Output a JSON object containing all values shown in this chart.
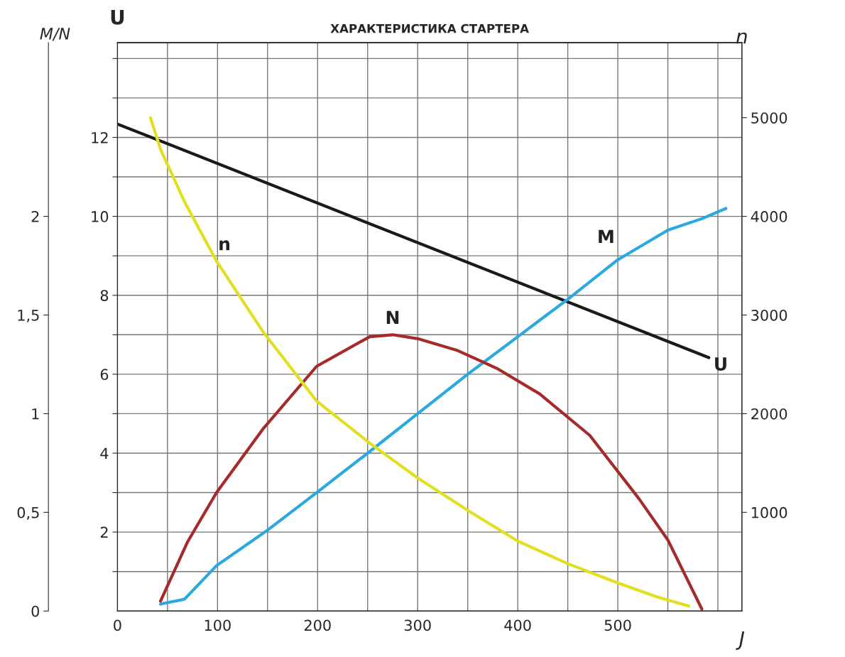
{
  "chart_data": {
    "type": "line",
    "title": "ХАРАКТЕРИСТИКА СТАРТЕРА",
    "xlabel": "J",
    "ylabel": "U",
    "y2label": "M/N",
    "y3label": "n",
    "xlim": [
      0,
      624
    ],
    "xticks": [
      0,
      {
        "value": 50,
        "label": null
      },
      100,
      {
        "value": 150,
        "label": null
      },
      200,
      {
        "value": 250,
        "label": null
      },
      300,
      {
        "value": 350,
        "label": null
      },
      400,
      {
        "value": 450,
        "label": null
      },
      500,
      {
        "value": 550,
        "label": null
      },
      {
        "value": 600,
        "label": null
      }
    ],
    "ylim": [
      0,
      14.4
    ],
    "yticks": [
      {
        "value": 1,
        "label": null
      },
      2,
      {
        "value": 3,
        "label": null
      },
      4,
      {
        "value": 5,
        "label": null
      },
      6,
      {
        "value": 7,
        "label": null
      },
      8,
      {
        "value": 9,
        "label": null
      },
      10,
      {
        "value": 11,
        "label": null
      },
      12,
      {
        "value": 13,
        "label": null
      },
      {
        "value": 14,
        "label": null
      }
    ],
    "y2lim": [
      0,
      2.88
    ],
    "y2ticks": [
      0,
      {
        "value": 0.5,
        "label": "0,5"
      },
      1,
      {
        "value": 1.5,
        "label": "1,5"
      },
      2
    ],
    "y3lim": [
      0,
      5760
    ],
    "y3ticks": [
      1000,
      2000,
      3000,
      4000,
      5000
    ],
    "grid": true,
    "marker": "none",
    "line_style": "solid",
    "series": [
      {
        "name": "U",
        "color": "#1a1a1a",
        "x": [
          0,
          591
        ],
        "values": [
          12.34,
          6.42
        ]
      },
      {
        "name": "M",
        "color": "#2aa8e0",
        "axis": "y2",
        "x": [
          43,
          67,
          99,
          150,
          199,
          250,
          300,
          350,
          400,
          450,
          500,
          550,
          585,
          608
        ],
        "values": [
          0.035,
          0.06,
          0.23,
          0.41,
          0.6,
          0.8,
          1.0,
          1.2,
          1.39,
          1.58,
          1.78,
          1.93,
          1.99,
          2.04
        ]
      },
      {
        "name": "N",
        "color": "#a52a2a",
        "axis": "y2",
        "x": [
          43,
          70,
          99,
          145,
          199,
          252,
          275,
          300,
          340,
          379,
          422,
          472,
          521,
          550,
          584
        ],
        "values": [
          0.05,
          0.35,
          0.6,
          0.92,
          1.24,
          1.39,
          1.4,
          1.38,
          1.32,
          1.23,
          1.1,
          0.89,
          0.57,
          0.36,
          0.01
        ]
      },
      {
        "name": "n",
        "color": "#e0e020",
        "axis": "y3",
        "x": [
          33,
          43,
          67,
          99,
          145,
          199,
          252,
          300,
          350,
          400,
          450,
          500,
          540,
          571
        ],
        "values": [
          5000,
          4681,
          4149,
          3546,
          2837,
          2128,
          1702,
          1348,
          1020,
          709,
          480,
          284,
          140,
          50
        ]
      }
    ]
  }
}
